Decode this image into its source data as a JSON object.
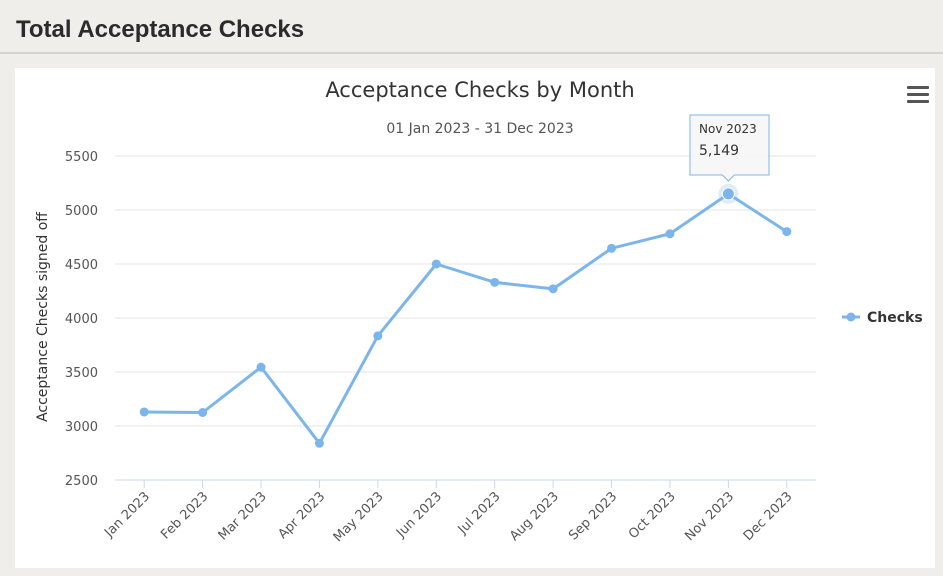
{
  "page": {
    "title": "Total Acceptance Checks"
  },
  "theme": {
    "line_color": "#7cb5ec",
    "grid_color": "#e6e6e6",
    "text_color": "#333333"
  },
  "tooltip": {
    "label": "Nov 2023",
    "value": "5,149"
  },
  "menu": {
    "icon": "hamburger-menu-icon"
  },
  "chart_data": {
    "type": "line",
    "title": "Acceptance Checks by Month",
    "subtitle": "01 Jan 2023 - 31 Dec 2023",
    "xlabel": "",
    "ylabel": "Acceptance Checks signed off",
    "ylim": [
      2500,
      5500
    ],
    "yticks": [
      2500,
      3000,
      3500,
      4000,
      4500,
      5000,
      5500
    ],
    "categories": [
      "Jan 2023",
      "Feb 2023",
      "Mar 2023",
      "Apr 2023",
      "May 2023",
      "Jun 2023",
      "Jul 2023",
      "Aug 2023",
      "Sep 2023",
      "Oct 2023",
      "Nov 2023",
      "Dec 2023"
    ],
    "series": [
      {
        "name": "Checks",
        "values": [
          3130,
          3125,
          3545,
          2840,
          3835,
          4500,
          4330,
          4270,
          4645,
          4780,
          5149,
          4800
        ]
      }
    ],
    "legend": "right",
    "grid": true,
    "highlighted_index": 10
  }
}
